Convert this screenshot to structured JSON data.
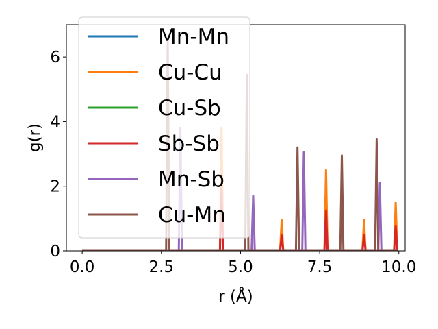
{
  "chart_data": {
    "type": "line",
    "xlabel": "r (Å)",
    "ylabel": "g(r)",
    "xlim": [
      -0.5,
      10.2
    ],
    "ylim": [
      0,
      7.0
    ],
    "x_ticks": [
      0.0,
      2.5,
      5.0,
      7.5,
      10.0
    ],
    "x_tick_labels": [
      "0.0",
      "2.5",
      "5.0",
      "7.5",
      "10.0"
    ],
    "y_ticks": [
      0,
      2,
      4,
      6
    ],
    "y_tick_labels": [
      "0",
      "2",
      "4",
      "6"
    ],
    "grid": false,
    "legend_position": "upper-left",
    "peak_half_width": 0.05,
    "series": [
      {
        "name": "Mn-Mn",
        "color": "#1f77b4",
        "peaks": []
      },
      {
        "name": "Cu-Cu",
        "color": "#ff7f0e",
        "peaks": [
          [
            4.4,
            3.8
          ],
          [
            6.3,
            0.95
          ],
          [
            7.7,
            2.5
          ],
          [
            8.9,
            0.95
          ],
          [
            9.9,
            1.5
          ]
        ]
      },
      {
        "name": "Cu-Sb",
        "color": "#2ca02c",
        "peaks": []
      },
      {
        "name": "Sb-Sb",
        "color": "#d62728",
        "peaks": [
          [
            4.4,
            1.9
          ],
          [
            6.3,
            0.48
          ],
          [
            7.7,
            1.25
          ],
          [
            8.9,
            0.48
          ],
          [
            9.9,
            0.78
          ]
        ]
      },
      {
        "name": "Mn-Sb",
        "color": "#9467bd",
        "peaks": [
          [
            3.1,
            3.8
          ],
          [
            5.4,
            1.7
          ],
          [
            7.0,
            3.05
          ],
          [
            9.4,
            2.1
          ]
        ]
      },
      {
        "name": "Cu-Mn",
        "color": "#8c564b",
        "peaks": [
          [
            2.7,
            6.6
          ],
          [
            5.2,
            5.45
          ],
          [
            6.8,
            3.2
          ],
          [
            8.2,
            2.95
          ],
          [
            9.3,
            3.45
          ]
        ]
      }
    ]
  }
}
